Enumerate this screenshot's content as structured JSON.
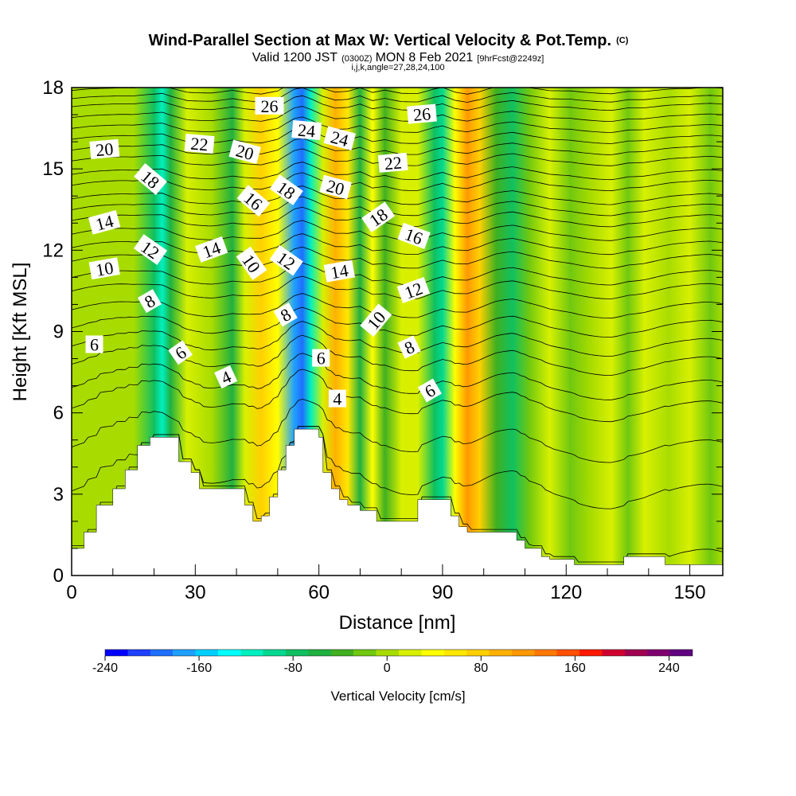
{
  "chart_data": {
    "type": "heatmap",
    "title": "Wind-Parallel Section at Max W: Vertical Velocity & Pot.Temp.",
    "title_suffix": "(C)",
    "subtitle": {
      "part1": "Valid 1200 JST",
      "part2": "(0300Z)",
      "part3": "MON 8 Feb 2021",
      "part4": "[9hrFcst@2249z]"
    },
    "subtitle2": "i,j,k,angle=27,28,24,100",
    "xlabel": "Distance [nm]",
    "ylabel": "Height [Kft MSL]",
    "xlim": [
      0,
      158
    ],
    "ylim": [
      0,
      18
    ],
    "x_ticks": [
      0,
      30,
      60,
      90,
      120,
      150
    ],
    "y_ticks": [
      0,
      3,
      6,
      9,
      12,
      15,
      18
    ],
    "colorbar": {
      "label": "Vertical Velocity [cm/s]",
      "range": [
        -240,
        260
      ],
      "ticks": [
        -240,
        -160,
        -80,
        0,
        80,
        160,
        240
      ],
      "colors": [
        "#0000ff",
        "#1f3fff",
        "#1f6fff",
        "#1fa0ff",
        "#00d0ff",
        "#00ffff",
        "#00f0c0",
        "#00d890",
        "#10c060",
        "#20b040",
        "#40b020",
        "#70c810",
        "#a8dc00",
        "#d8f000",
        "#ffff00",
        "#ffe800",
        "#ffd000",
        "#ffb000",
        "#ff9800",
        "#ff7800",
        "#ff5000",
        "#ff1800",
        "#d00030",
        "#a00050",
        "#800070",
        "#600080"
      ]
    },
    "velocity_columns": [
      {
        "x": 0,
        "w": 5
      },
      {
        "x": 4,
        "w": 0
      },
      {
        "x": 9,
        "w": 8
      },
      {
        "x": 15,
        "w": 0
      },
      {
        "x": 20,
        "w": -75
      },
      {
        "x": 22,
        "w": -110
      },
      {
        "x": 24,
        "w": -60
      },
      {
        "x": 28,
        "w": 15
      },
      {
        "x": 34,
        "w": 5
      },
      {
        "x": 39,
        "w": -55
      },
      {
        "x": 42,
        "w": 10
      },
      {
        "x": 46,
        "w": 85
      },
      {
        "x": 50,
        "w": 40
      },
      {
        "x": 54,
        "w": -170
      },
      {
        "x": 56,
        "w": -200
      },
      {
        "x": 58,
        "w": -120
      },
      {
        "x": 61,
        "w": 15
      },
      {
        "x": 64,
        "w": 95
      },
      {
        "x": 67,
        "w": 55
      },
      {
        "x": 70,
        "w": -55
      },
      {
        "x": 73,
        "w": 35
      },
      {
        "x": 76,
        "w": -45
      },
      {
        "x": 80,
        "w": 15
      },
      {
        "x": 84,
        "w": 20
      },
      {
        "x": 88,
        "w": -80
      },
      {
        "x": 90,
        "w": -105
      },
      {
        "x": 93,
        "w": 35
      },
      {
        "x": 96,
        "w": 110
      },
      {
        "x": 99,
        "w": 70
      },
      {
        "x": 103,
        "w": -30
      },
      {
        "x": 107,
        "w": -75
      },
      {
        "x": 111,
        "w": -15
      },
      {
        "x": 116,
        "w": 25
      },
      {
        "x": 121,
        "w": -10
      },
      {
        "x": 126,
        "w": 5
      },
      {
        "x": 131,
        "w": 25
      },
      {
        "x": 135,
        "w": -20
      },
      {
        "x": 139,
        "w": 10
      },
      {
        "x": 145,
        "w": 0
      },
      {
        "x": 150,
        "w": 15
      },
      {
        "x": 155,
        "w": -10
      },
      {
        "x": 158,
        "w": 0
      }
    ],
    "terrain_kft": [
      [
        0,
        1.0
      ],
      [
        3,
        1.6
      ],
      [
        6,
        2.6
      ],
      [
        10,
        3.2
      ],
      [
        13,
        3.9
      ],
      [
        16,
        4.8
      ],
      [
        19,
        5.1
      ],
      [
        26,
        4.2
      ],
      [
        29,
        3.8
      ],
      [
        31,
        3.2
      ],
      [
        38,
        3.2
      ],
      [
        42,
        2.6
      ],
      [
        44,
        2.0
      ],
      [
        46,
        2.2
      ],
      [
        48,
        2.9
      ],
      [
        50,
        3.9
      ],
      [
        52,
        4.8
      ],
      [
        54,
        5.4
      ],
      [
        58,
        5.4
      ],
      [
        60,
        5.1
      ],
      [
        61,
        3.8
      ],
      [
        63,
        3.2
      ],
      [
        65,
        2.8
      ],
      [
        67,
        2.6
      ],
      [
        70,
        2.4
      ],
      [
        74,
        2.0
      ],
      [
        82,
        2.0
      ],
      [
        84,
        2.8
      ],
      [
        90,
        2.8
      ],
      [
        92,
        2.2
      ],
      [
        94,
        1.8
      ],
      [
        96,
        1.6
      ],
      [
        104,
        1.6
      ],
      [
        108,
        1.3
      ],
      [
        110,
        1.0
      ],
      [
        114,
        0.7
      ],
      [
        116,
        0.6
      ],
      [
        122,
        0.4
      ],
      [
        132,
        0.4
      ],
      [
        134,
        0.7
      ],
      [
        142,
        0.7
      ],
      [
        144,
        0.4
      ],
      [
        158,
        0.4
      ]
    ],
    "theta_levels": [
      {
        "value": 1,
        "z0": 0.3
      },
      {
        "value": 2,
        "z0": 2.8
      },
      {
        "value": 3,
        "z0": 4.5
      },
      {
        "value": 4,
        "z0": 6.0
      },
      {
        "value": 5,
        "z0": 6.8
      },
      {
        "value": 6,
        "z0": 7.7
      },
      {
        "value": 7,
        "z0": 8.4
      },
      {
        "value": 8,
        "z0": 9.1
      },
      {
        "value": 9,
        "z0": 9.8
      },
      {
        "value": 10,
        "z0": 10.5
      },
      {
        "value": 11,
        "z0": 11.0
      },
      {
        "value": 12,
        "z0": 11.6
      },
      {
        "value": 13,
        "z0": 12.1
      },
      {
        "value": 14,
        "z0": 12.6
      },
      {
        "value": 15,
        "z0": 13.1
      },
      {
        "value": 16,
        "z0": 13.5
      },
      {
        "value": 17,
        "z0": 13.9
      },
      {
        "value": 18,
        "z0": 14.4
      },
      {
        "value": 19,
        "z0": 14.8
      },
      {
        "value": 20,
        "z0": 15.3
      },
      {
        "value": 21,
        "z0": 15.7
      },
      {
        "value": 22,
        "z0": 16.1
      },
      {
        "value": 23,
        "z0": 16.5
      },
      {
        "value": 24,
        "z0": 16.9
      },
      {
        "value": 25,
        "z0": 17.3
      },
      {
        "value": 26,
        "z0": 17.6
      },
      {
        "value": 27,
        "z0": 17.9
      },
      {
        "value": 28,
        "z0": 18.3
      },
      {
        "value": 29,
        "z0": 18.7
      },
      {
        "value": 30,
        "z0": 19.1
      }
    ],
    "contour_labels": [
      {
        "text": "20",
        "x": 8,
        "y": 15.7,
        "rot": -5
      },
      {
        "text": "14",
        "x": 8,
        "y": 13.0,
        "rot": -15
      },
      {
        "text": "10",
        "x": 8,
        "y": 11.3,
        "rot": -10
      },
      {
        "text": "6",
        "x": 5.5,
        "y": 8.5,
        "rot": 0
      },
      {
        "text": "18",
        "x": 19,
        "y": 14.6,
        "rot": 40
      },
      {
        "text": "12",
        "x": 19,
        "y": 12.0,
        "rot": 35
      },
      {
        "text": "8",
        "x": 19,
        "y": 10.1,
        "rot": -30
      },
      {
        "text": "6",
        "x": 26.5,
        "y": 8.2,
        "rot": -35
      },
      {
        "text": "22",
        "x": 31,
        "y": 15.9,
        "rot": 5
      },
      {
        "text": "14",
        "x": 34,
        "y": 12.0,
        "rot": -20
      },
      {
        "text": "4",
        "x": 37.5,
        "y": 7.3,
        "rot": -25
      },
      {
        "text": "20",
        "x": 42,
        "y": 15.6,
        "rot": 15
      },
      {
        "text": "16",
        "x": 44,
        "y": 13.8,
        "rot": 40
      },
      {
        "text": "10",
        "x": 43.5,
        "y": 11.5,
        "rot": 55
      },
      {
        "text": "26",
        "x": 48,
        "y": 17.3,
        "rot": 0
      },
      {
        "text": "18",
        "x": 52,
        "y": 14.2,
        "rot": 35
      },
      {
        "text": "12",
        "x": 52,
        "y": 11.6,
        "rot": 35
      },
      {
        "text": "8",
        "x": 52,
        "y": 9.6,
        "rot": -30
      },
      {
        "text": "24",
        "x": 57,
        "y": 16.4,
        "rot": 5
      },
      {
        "text": "6",
        "x": 60.5,
        "y": 8.0,
        "rot": 0
      },
      {
        "text": "20",
        "x": 64,
        "y": 14.3,
        "rot": 15
      },
      {
        "text": "14",
        "x": 65,
        "y": 11.2,
        "rot": -10
      },
      {
        "text": "24",
        "x": 65,
        "y": 16.1,
        "rot": 15
      },
      {
        "text": "4",
        "x": 64.5,
        "y": 6.5,
        "rot": 0
      },
      {
        "text": "22",
        "x": 78,
        "y": 15.2,
        "rot": -5
      },
      {
        "text": "18",
        "x": 74.5,
        "y": 13.2,
        "rot": -35
      },
      {
        "text": "10",
        "x": 74,
        "y": 9.4,
        "rot": -50
      },
      {
        "text": "26",
        "x": 85,
        "y": 17.0,
        "rot": -5
      },
      {
        "text": "16",
        "x": 83,
        "y": 12.5,
        "rot": 20
      },
      {
        "text": "12",
        "x": 83,
        "y": 10.5,
        "rot": -20
      },
      {
        "text": "8",
        "x": 82,
        "y": 8.4,
        "rot": -25
      },
      {
        "text": "6",
        "x": 87,
        "y": 6.8,
        "rot": -30
      }
    ]
  }
}
